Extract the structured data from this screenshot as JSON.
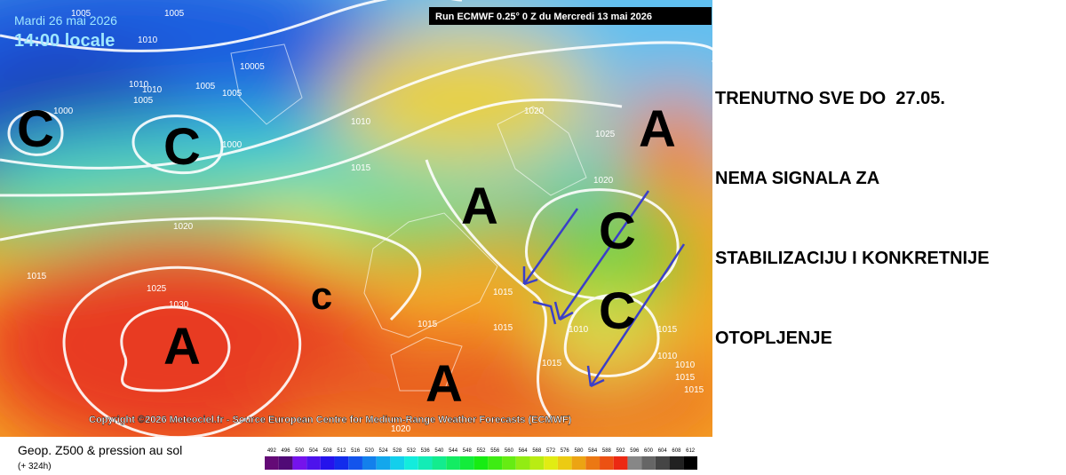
{
  "header": {
    "date": "Mardi 26 mai 2026",
    "time": "14:00 locale",
    "run": "Run ECMWF 0.25° 0 Z du Mercredi 13 mai 2026"
  },
  "map": {
    "centers": [
      "C",
      "C",
      "A",
      "c",
      "A",
      "A",
      "A",
      "C",
      "C"
    ],
    "isobar_labels": [
      "1005",
      "1010",
      "1005",
      "10005",
      "1010",
      "1010",
      "1005",
      "1005",
      "1005",
      "1000",
      "1000",
      "1010",
      "1015",
      "1020",
      "1015",
      "1025",
      "1030",
      "1020",
      "1025",
      "1020",
      "1015",
      "1015",
      "1015",
      "1010",
      "1015",
      "1015",
      "1010",
      "1015",
      "1020",
      "1015",
      "1010"
    ],
    "copyright": "Copyright ©2026 Meteociel.fr - Source European Centre for Medium-Range Weather Forecasts (ECMWF)"
  },
  "footer": {
    "title": "Geop. Z500 & pression au sol",
    "lead": "(+ 324h)",
    "colorbar": [
      "492",
      "496",
      "500",
      "504",
      "508",
      "512",
      "516",
      "520",
      "524",
      "528",
      "532",
      "536",
      "540",
      "544",
      "548",
      "552",
      "556",
      "560",
      "564",
      "568",
      "572",
      "576",
      "580",
      "584",
      "588",
      "592",
      "596",
      "600",
      "604",
      "608",
      "612"
    ]
  },
  "annotation": {
    "lines": [
      "TRENUTNO SVE DO  27.05.",
      "NEMA SIGNALA ZA",
      "STABILIZACIJU I KONKRETNIJE",
      "OTOPLJENJE"
    ]
  }
}
